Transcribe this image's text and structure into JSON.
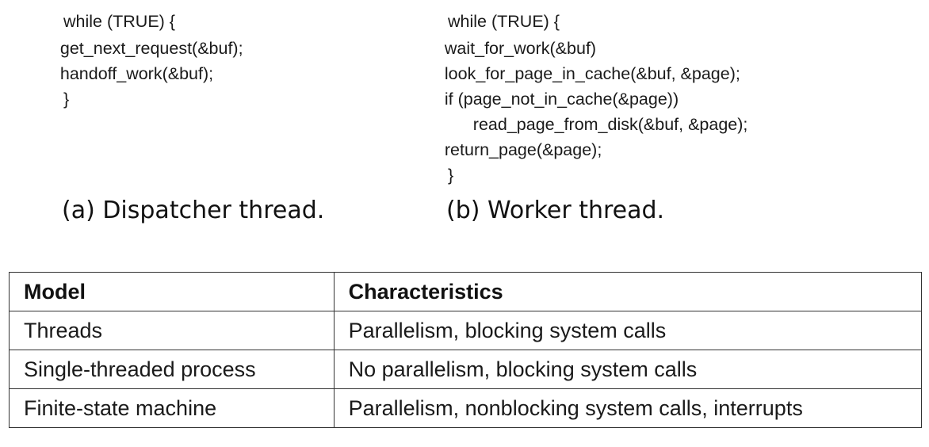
{
  "dispatcher": {
    "code": [
      "while (TRUE) {",
      "    get_next_request(&buf);",
      "    handoff_work(&buf);",
      "}"
    ],
    "caption": "(a) Dispatcher thread."
  },
  "worker": {
    "code": [
      "while (TRUE) {",
      "    wait_for_work(&buf)",
      "    look_for_page_in_cache(&buf, &page);",
      "    if (page_not_in_cache(&page))",
      "        read_page_from_disk(&buf, &page);",
      "    return_page(&page);",
      "}"
    ],
    "caption": "(b) Worker thread."
  },
  "table": {
    "headers": [
      "Model",
      "Characteristics"
    ],
    "rows": [
      [
        "Threads",
        "Parallelism, blocking system calls"
      ],
      [
        "Single-threaded process",
        "No parallelism, blocking system calls"
      ],
      [
        "Finite-state machine",
        "Parallelism, nonblocking system calls, interrupts"
      ]
    ]
  }
}
